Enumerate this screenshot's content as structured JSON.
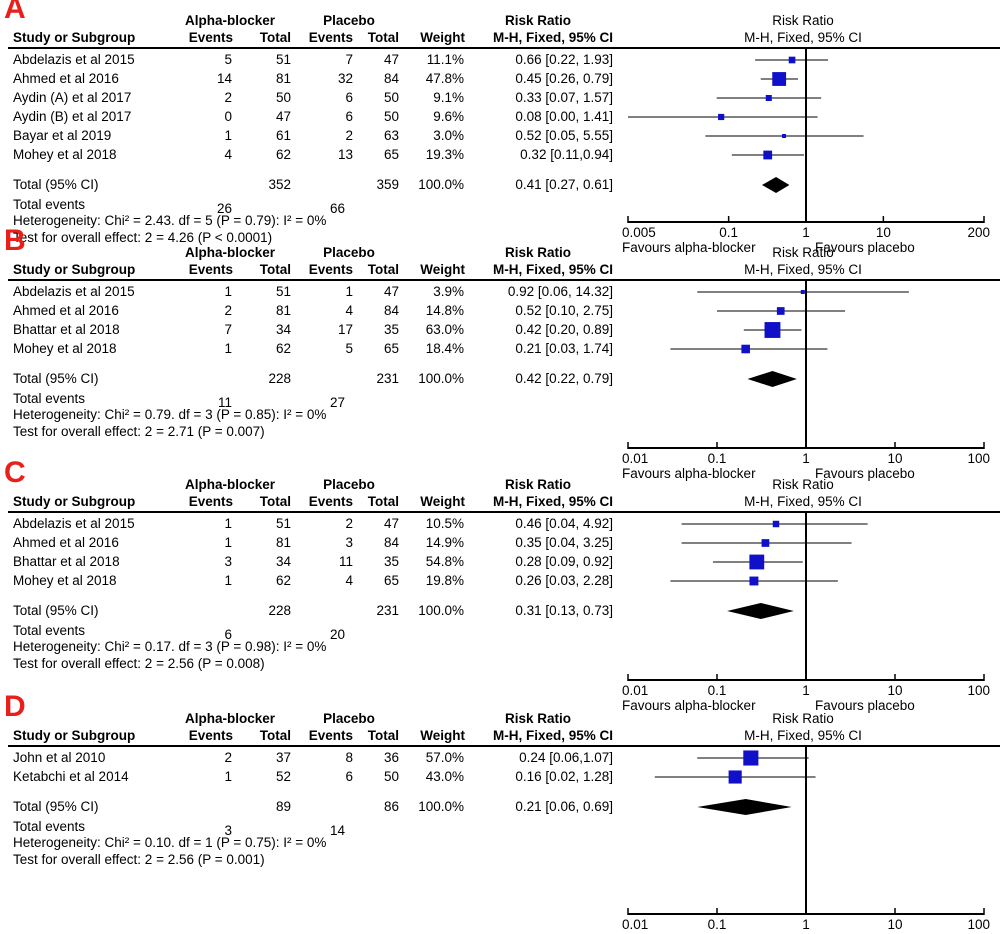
{
  "colors": {
    "panel_letter": "#e8201c",
    "square": "#1010c8",
    "diamond": "#000000"
  },
  "headers": {
    "group1": "Alpha-blocker",
    "group2": "Placebo",
    "effect": "Risk Ratio",
    "study": "Study or Subgroup",
    "events": "Events",
    "total": "Total",
    "weight": "Weight",
    "method": "M-H, Fixed, 95% CI",
    "plot_title": "Risk Ratio",
    "plot_method": "M-H, Fixed, 95% CI"
  },
  "favours": {
    "left": "Favours alpha-blocker",
    "right": "Favours placebo"
  },
  "panels": [
    {
      "letter": "A",
      "studies": [
        {
          "name": "Abdelazis et al 2015",
          "e1": "5",
          "n1": "51",
          "e2": "7",
          "n2": "47",
          "weight": "11.1%",
          "ci": "0.66 [0.22, 1.93]"
        },
        {
          "name": "Ahmed et al 2016",
          "e1": "14",
          "n1": "81",
          "e2": "32",
          "n2": "84",
          "weight": "47.8%",
          "ci": "0.45 [0.26, 0.79]"
        },
        {
          "name": "Aydin (A) et al 2017",
          "e1": "2",
          "n1": "50",
          "e2": "6",
          "n2": "50",
          "weight": "9.1%",
          "ci": "0.33 [0.07, 1.57]"
        },
        {
          "name": "Aydin (B) et al 2017",
          "e1": "0",
          "n1": "47",
          "e2": "6",
          "n2": "50",
          "weight": "9.6%",
          "ci": "0.08 [0.00, 1.41]"
        },
        {
          "name": "Bayar et al 2019",
          "e1": "1",
          "n1": "61",
          "e2": "2",
          "n2": "63",
          "weight": "3.0%",
          "ci": "0.52 [0.05, 5.55]"
        },
        {
          "name": "Mohey et al 2018",
          "e1": "4",
          "n1": "62",
          "e2": "13",
          "n2": "65",
          "weight": "19.3%",
          "ci": "0.32 [0.11,0.94]"
        }
      ],
      "total": {
        "label": "Total (95% CI)",
        "n1": "352",
        "n2": "359",
        "weight": "100.0%",
        "ci": "0.41 [0.27, 0.61]"
      },
      "events": {
        "label": "Total events",
        "e1": "26",
        "e2": "66"
      },
      "heterogeneity": "Heterogeneity: Chi² = 2.43. df = 5 (P = 0.79): I² = 0%",
      "overall": "Test for overall effect: 2 = 4.26 (P < 0.0001)",
      "ticks": [
        "0.005",
        "0.1",
        "1",
        "10",
        "200"
      ]
    },
    {
      "letter": "B",
      "studies": [
        {
          "name": "Abdelazis et al 2015",
          "e1": "1",
          "n1": "51",
          "e2": "1",
          "n2": "47",
          "weight": "3.9%",
          "ci": "0.92 [0.06, 14.32]"
        },
        {
          "name": "Ahmed et al 2016",
          "e1": "2",
          "n1": "81",
          "e2": "4",
          "n2": "84",
          "weight": "14.8%",
          "ci": "0.52 [0.10, 2.75]"
        },
        {
          "name": "Bhattar et al 2018",
          "e1": "7",
          "n1": "34",
          "e2": "17",
          "n2": "35",
          "weight": "63.0%",
          "ci": "0.42 [0.20, 0.89]"
        },
        {
          "name": "Mohey et al 2018",
          "e1": "1",
          "n1": "62",
          "e2": "5",
          "n2": "65",
          "weight": "18.4%",
          "ci": "0.21 [0.03, 1.74]"
        }
      ],
      "total": {
        "label": "Total (95% CI)",
        "n1": "228",
        "n2": "231",
        "weight": "100.0%",
        "ci": "0.42 [0.22, 0.79]"
      },
      "events": {
        "label": "Total events",
        "e1": "11",
        "e2": "27"
      },
      "heterogeneity": "Heterogeneity: Chi² = 0.79. df = 3 (P = 0.85): I² = 0%",
      "overall": "Test for overall effect: 2 = 2.71 (P = 0.007)",
      "ticks": [
        "0.01",
        "0.1",
        "1",
        "10",
        "100"
      ]
    },
    {
      "letter": "C",
      "studies": [
        {
          "name": "Abdelazis et al 2015",
          "e1": "1",
          "n1": "51",
          "e2": "2",
          "n2": "47",
          "weight": "10.5%",
          "ci": "0.46 [0.04, 4.92]"
        },
        {
          "name": "Ahmed et al 2016",
          "e1": "1",
          "n1": "81",
          "e2": "3",
          "n2": "84",
          "weight": "14.9%",
          "ci": "0.35 [0.04, 3.25]"
        },
        {
          "name": "Bhattar et al 2018",
          "e1": "3",
          "n1": "34",
          "e2": "11",
          "n2": "35",
          "weight": "54.8%",
          "ci": "0.28 [0.09, 0.92]"
        },
        {
          "name": "Mohey et al 2018",
          "e1": "1",
          "n1": "62",
          "e2": "4",
          "n2": "65",
          "weight": "19.8%",
          "ci": "0.26 [0.03, 2.28]"
        }
      ],
      "total": {
        "label": "Total (95% CI)",
        "n1": "228",
        "n2": "231",
        "weight": "100.0%",
        "ci": "0.31 [0.13, 0.73]"
      },
      "events": {
        "label": "Total events",
        "e1": "6",
        "e2": "20"
      },
      "heterogeneity": "Heterogeneity: Chi² = 0.17. df = 3 (P = 0.98): I² = 0%",
      "overall": "Test for overall effect: 2 = 2.56 (P = 0.008)",
      "ticks": [
        "0.01",
        "0.1",
        "1",
        "10",
        "100"
      ]
    },
    {
      "letter": "D",
      "studies": [
        {
          "name": "John et al 2010",
          "e1": "2",
          "n1": "37",
          "e2": "8",
          "n2": "36",
          "weight": "57.0%",
          "ci": "0.24 [0.06,1.07]"
        },
        {
          "name": "Ketabchi et al 2014",
          "e1": "1",
          "n1": "52",
          "e2": "6",
          "n2": "50",
          "weight": "43.0%",
          "ci": "0.16 [0.02, 1.28]"
        }
      ],
      "total": {
        "label": "Total (95% CI)",
        "n1": "89",
        "n2": "86",
        "weight": "100.0%",
        "ci": "0.21 [0.06, 0.69]"
      },
      "events": {
        "label": "Total events",
        "e1": "3",
        "e2": "14"
      },
      "heterogeneity": "Heterogeneity: Chi² = 0.10. df = 1 (P = 0.75): I² = 0%",
      "overall": "Test for overall effect: 2 = 2.56 (P = 0.001)",
      "ticks": [
        "0.01",
        "0.1",
        "1",
        "10",
        "100"
      ]
    }
  ],
  "chart_data": [
    {
      "type": "forest",
      "title": "Risk Ratio",
      "xscale": "log",
      "xlim": [
        0.005,
        200
      ],
      "studies": [
        {
          "name": "Abdelazis et al 2015",
          "rr": 0.66,
          "lo": 0.22,
          "hi": 1.93,
          "weight": 11.1
        },
        {
          "name": "Ahmed et al 2016",
          "rr": 0.45,
          "lo": 0.26,
          "hi": 0.79,
          "weight": 47.8
        },
        {
          "name": "Aydin (A) et al 2017",
          "rr": 0.33,
          "lo": 0.07,
          "hi": 1.57,
          "weight": 9.1
        },
        {
          "name": "Aydin (B) et al 2017",
          "rr": 0.08,
          "lo": 0.005,
          "hi": 1.41,
          "weight": 9.6
        },
        {
          "name": "Bayar et al 2019",
          "rr": 0.52,
          "lo": 0.05,
          "hi": 5.55,
          "weight": 3.0
        },
        {
          "name": "Mohey et al 2018",
          "rr": 0.32,
          "lo": 0.11,
          "hi": 0.94,
          "weight": 19.3
        }
      ],
      "pooled": {
        "rr": 0.41,
        "lo": 0.27,
        "hi": 0.61
      }
    },
    {
      "type": "forest",
      "title": "Risk Ratio",
      "xscale": "log",
      "xlim": [
        0.01,
        100
      ],
      "studies": [
        {
          "name": "Abdelazis et al 2015",
          "rr": 0.92,
          "lo": 0.06,
          "hi": 14.32,
          "weight": 3.9
        },
        {
          "name": "Ahmed et al 2016",
          "rr": 0.52,
          "lo": 0.1,
          "hi": 2.75,
          "weight": 14.8
        },
        {
          "name": "Bhattar et al 2018",
          "rr": 0.42,
          "lo": 0.2,
          "hi": 0.89,
          "weight": 63.0
        },
        {
          "name": "Mohey et al 2018",
          "rr": 0.21,
          "lo": 0.03,
          "hi": 1.74,
          "weight": 18.4
        }
      ],
      "pooled": {
        "rr": 0.42,
        "lo": 0.22,
        "hi": 0.79
      }
    },
    {
      "type": "forest",
      "title": "Risk Ratio",
      "xscale": "log",
      "xlim": [
        0.01,
        100
      ],
      "studies": [
        {
          "name": "Abdelazis et al 2015",
          "rr": 0.46,
          "lo": 0.04,
          "hi": 4.92,
          "weight": 10.5
        },
        {
          "name": "Ahmed et al 2016",
          "rr": 0.35,
          "lo": 0.04,
          "hi": 3.25,
          "weight": 14.9
        },
        {
          "name": "Bhattar et al 2018",
          "rr": 0.28,
          "lo": 0.09,
          "hi": 0.92,
          "weight": 54.8
        },
        {
          "name": "Mohey et al 2018",
          "rr": 0.26,
          "lo": 0.03,
          "hi": 2.28,
          "weight": 19.8
        }
      ],
      "pooled": {
        "rr": 0.31,
        "lo": 0.13,
        "hi": 0.73
      }
    },
    {
      "type": "forest",
      "title": "Risk Ratio",
      "xscale": "log",
      "xlim": [
        0.01,
        100
      ],
      "studies": [
        {
          "name": "John et al 2010",
          "rr": 0.24,
          "lo": 0.06,
          "hi": 1.07,
          "weight": 57.0
        },
        {
          "name": "Ketabchi et al 2014",
          "rr": 0.16,
          "lo": 0.02,
          "hi": 1.28,
          "weight": 43.0
        }
      ],
      "pooled": {
        "rr": 0.21,
        "lo": 0.06,
        "hi": 0.69
      }
    }
  ]
}
